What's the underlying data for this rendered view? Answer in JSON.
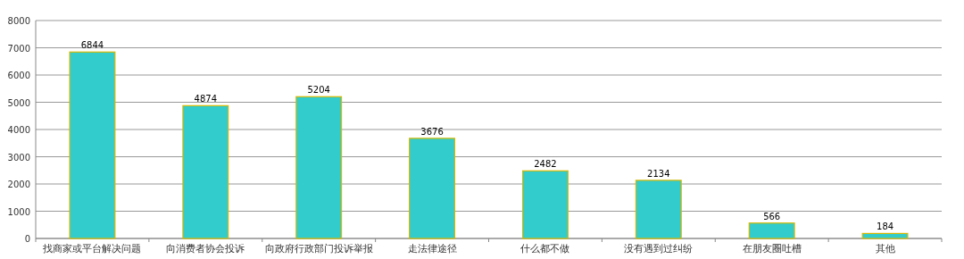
{
  "chart_data": {
    "type": "bar",
    "categories": [
      "找商家或平台解决问题",
      "向消费者协会投诉",
      "向政府行政部门投诉举报",
      "走法律途径",
      "什么都不做",
      "没有遇到过纠纷",
      "在朋友圈吐槽",
      "其他"
    ],
    "values": [
      6844,
      4874,
      5204,
      3676,
      2482,
      2134,
      566,
      184
    ],
    "color": "#33cccc",
    "ylim": [
      0,
      8000
    ],
    "yticks": [
      0,
      1000,
      2000,
      3000,
      4000,
      5000,
      6000,
      7000,
      8000
    ],
    "grid": "y",
    "data_labels": true
  }
}
